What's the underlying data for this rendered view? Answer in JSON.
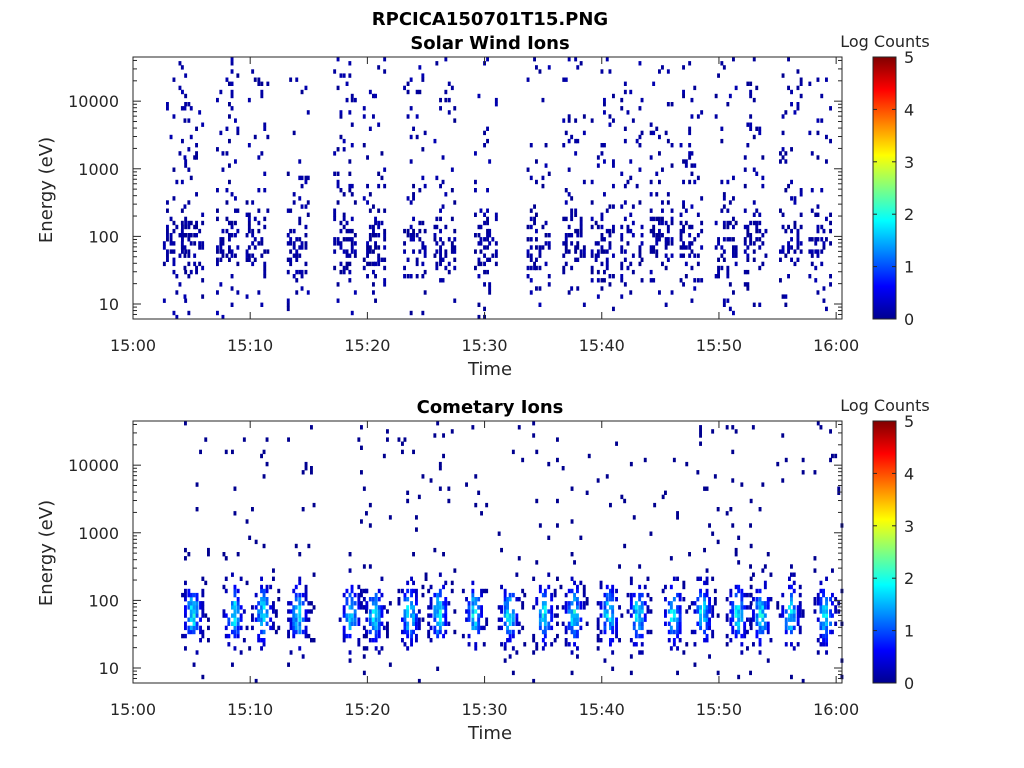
{
  "figure": {
    "title": "RPCICA150701T15.PNG",
    "colormap": [
      "#00008f",
      "#0000ff",
      "#0080ff",
      "#00ffff",
      "#80ff80",
      "#ffff00",
      "#ff8000",
      "#ff0000",
      "#800000"
    ]
  },
  "chart_data": [
    {
      "type": "heatmap",
      "title": "Solar Wind Ions",
      "xlabel": "Time",
      "ylabel": "Energy (eV)",
      "x_ticks": [
        "15:00",
        "15:10",
        "15:20",
        "15:30",
        "15:40",
        "15:50",
        "16:00"
      ],
      "xlim_minutes": [
        0,
        60.5
      ],
      "y_scale": "log",
      "y_ticks": [
        10,
        100,
        1000,
        10000
      ],
      "y_tick_labels": [
        "10",
        "100",
        "1000",
        "10000"
      ],
      "ylim": [
        6,
        45000
      ],
      "colorbar": {
        "label": "Log Counts",
        "range": [
          0,
          5
        ],
        "ticks": [
          "0",
          "1",
          "2",
          "3",
          "4",
          "5"
        ]
      },
      "max_value": 0.5,
      "bursts": [
        3.5,
        5,
        8,
        10.5,
        14,
        18,
        20.5,
        24,
        26.5,
        30,
        34.5,
        37.5,
        40,
        42.5,
        45,
        47.5,
        50.5,
        53,
        56,
        58.5
      ],
      "summary": "Sparse low-count (~0 log counts) detections, mostly 20–500 eV with scattered points up to ~20000 eV"
    },
    {
      "type": "heatmap",
      "title": "Cometary Ions",
      "xlabel": "Time",
      "ylabel": "Energy (eV)",
      "x_ticks": [
        "15:00",
        "15:10",
        "15:20",
        "15:30",
        "15:40",
        "15:50",
        "16:00"
      ],
      "xlim_minutes": [
        0,
        60.5
      ],
      "y_scale": "log",
      "y_ticks": [
        10,
        100,
        1000,
        10000
      ],
      "y_tick_labels": [
        "10",
        "100",
        "1000",
        "10000"
      ],
      "ylim": [
        6,
        45000
      ],
      "colorbar": {
        "label": "Log Counts",
        "range": [
          0,
          5
        ],
        "ticks": [
          "0",
          "1",
          "2",
          "3",
          "4",
          "5"
        ]
      },
      "max_value": 2.2,
      "bursts": [
        5,
        8.5,
        11,
        14,
        18.5,
        20.5,
        23.5,
        26,
        29,
        32,
        35,
        37.5,
        40.5,
        43,
        46,
        48.5,
        51.5,
        53.5,
        56,
        59
      ],
      "summary": "Periodic ion bursts roughly every 2.5–3 min, 10–500 eV, peaking near 50–100 eV at ~1.5–2 log counts"
    }
  ]
}
